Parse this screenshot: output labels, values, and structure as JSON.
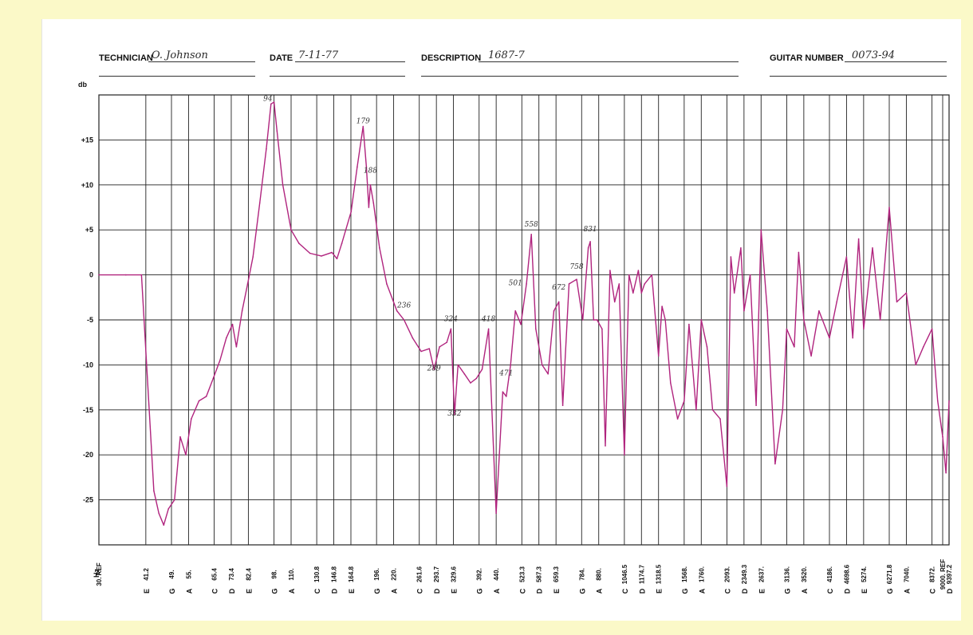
{
  "header": {
    "technician_label": "TECHNICIAN",
    "technician_value": "O. Johnson",
    "date_label": "DATE",
    "date_value": "7-11-77",
    "description_label": "DESCRIPTION",
    "description_value": "1687-7",
    "guitar_number_label": "GUITAR NUMBER",
    "guitar_number_value": "0073-94"
  },
  "chart_data": {
    "type": "line",
    "ylabel": "db",
    "xlabel": "Hz",
    "ylim": [
      -30,
      20
    ],
    "y_ticks": [
      "+15",
      "+10",
      "+5",
      "0",
      "-5",
      "-10",
      "-15",
      "-20",
      "-25"
    ],
    "y_tick_values": [
      15,
      10,
      5,
      0,
      -5,
      -10,
      -15,
      -20,
      -25
    ],
    "grid": true,
    "x_labels": [
      {
        "freq": "30. REF",
        "note": ""
      },
      {
        "freq": "41.2",
        "note": "E"
      },
      {
        "freq": "49.",
        "note": "G"
      },
      {
        "freq": "55.",
        "note": "A"
      },
      {
        "freq": "65.4",
        "note": "C"
      },
      {
        "freq": "73.4",
        "note": "D"
      },
      {
        "freq": "82.4",
        "note": "E"
      },
      {
        "freq": "98.",
        "note": "G"
      },
      {
        "freq": "110.",
        "note": "A"
      },
      {
        "freq": "130.8",
        "note": "C"
      },
      {
        "freq": "146.8",
        "note": "D"
      },
      {
        "freq": "164.8",
        "note": "E"
      },
      {
        "freq": "196.",
        "note": "G"
      },
      {
        "freq": "220.",
        "note": "A"
      },
      {
        "freq": "261.6",
        "note": "C"
      },
      {
        "freq": "293.7",
        "note": "D"
      },
      {
        "freq": "329.6",
        "note": "E"
      },
      {
        "freq": "392.",
        "note": "G"
      },
      {
        "freq": "440.",
        "note": "A"
      },
      {
        "freq": "523.3",
        "note": "C"
      },
      {
        "freq": "587.3",
        "note": "D"
      },
      {
        "freq": "659.3",
        "note": "E"
      },
      {
        "freq": "784.",
        "note": "G"
      },
      {
        "freq": "880.",
        "note": "A"
      },
      {
        "freq": "1046.5",
        "note": "C"
      },
      {
        "freq": "1174.7",
        "note": "D"
      },
      {
        "freq": "1318.5",
        "note": "E"
      },
      {
        "freq": "1568.",
        "note": "G"
      },
      {
        "freq": "1760.",
        "note": "A"
      },
      {
        "freq": "2093.",
        "note": "C"
      },
      {
        "freq": "2349.3",
        "note": "D"
      },
      {
        "freq": "2637.",
        "note": "E"
      },
      {
        "freq": "3136.",
        "note": "G"
      },
      {
        "freq": "3520.",
        "note": "A"
      },
      {
        "freq": "4186.",
        "note": "C"
      },
      {
        "freq": "4698.6",
        "note": "D"
      },
      {
        "freq": "5274.",
        "note": "E"
      },
      {
        "freq": "6271.8",
        "note": "G"
      },
      {
        "freq": "7040.",
        "note": "A"
      },
      {
        "freq": "8372.",
        "note": "C"
      },
      {
        "freq": "9000. REF",
        "note": ""
      },
      {
        "freq": "9397.2",
        "note": "D"
      }
    ],
    "series": [
      {
        "color": "#b0247e",
        "points": [
          [
            30,
            0
          ],
          [
            36,
            0
          ],
          [
            40,
            0
          ],
          [
            43.5,
            -24
          ],
          [
            45,
            -26.5
          ],
          [
            46.5,
            -27.8
          ],
          [
            48,
            -26
          ],
          [
            50,
            -25
          ],
          [
            52,
            -18
          ],
          [
            54,
            -20
          ],
          [
            56,
            -16
          ],
          [
            59,
            -14
          ],
          [
            62,
            -13.5
          ],
          [
            65,
            -11.5
          ],
          [
            68,
            -9.5
          ],
          [
            71,
            -7
          ],
          [
            74,
            -5.5
          ],
          [
            76,
            -8
          ],
          [
            79,
            -4
          ],
          [
            82,
            -1
          ],
          [
            85,
            2
          ],
          [
            89,
            8
          ],
          [
            93,
            14
          ],
          [
            96,
            19
          ],
          [
            98,
            19.2
          ],
          [
            100,
            16
          ],
          [
            104,
            10
          ],
          [
            110,
            5
          ],
          [
            116,
            3.5
          ],
          [
            125,
            2.4
          ],
          [
            135,
            2.1
          ],
          [
            145,
            2.5
          ],
          [
            150,
            1.8
          ],
          [
            155,
            3.5
          ],
          [
            165,
            7
          ],
          [
            172,
            12
          ],
          [
            179,
            16.5
          ],
          [
            183,
            12
          ],
          [
            186,
            7.5
          ],
          [
            188,
            10
          ],
          [
            192,
            8
          ],
          [
            200,
            3
          ],
          [
            210,
            -1
          ],
          [
            225,
            -4
          ],
          [
            236,
            -5
          ],
          [
            250,
            -7
          ],
          [
            265,
            -8.5
          ],
          [
            280,
            -8.2
          ],
          [
            289,
            -10.5
          ],
          [
            300,
            -8
          ],
          [
            315,
            -7.5
          ],
          [
            324,
            -6
          ],
          [
            332,
            -15.5
          ],
          [
            340,
            -10
          ],
          [
            355,
            -11
          ],
          [
            370,
            -12
          ],
          [
            385,
            -11.5
          ],
          [
            400,
            -10.5
          ],
          [
            418,
            -6
          ],
          [
            440,
            -26.5
          ],
          [
            460,
            -13
          ],
          [
            471,
            -13.5
          ],
          [
            485,
            -10
          ],
          [
            501,
            -4
          ],
          [
            520,
            -5.5
          ],
          [
            540,
            -1
          ],
          [
            558,
            4.5
          ],
          [
            575,
            -6
          ],
          [
            600,
            -10
          ],
          [
            625,
            -11
          ],
          [
            650,
            -4
          ],
          [
            672,
            -3
          ],
          [
            690,
            -14.5
          ],
          [
            720,
            -1
          ],
          [
            758,
            -0.5
          ],
          [
            790,
            -5
          ],
          [
            820,
            3
          ],
          [
            831,
            3.7
          ],
          [
            850,
            -5
          ],
          [
            870,
            -5
          ],
          [
            900,
            -6
          ],
          [
            920,
            -19
          ],
          [
            950,
            0.5
          ],
          [
            980,
            -3
          ],
          [
            1010,
            -1
          ],
          [
            1046.5,
            -20
          ],
          [
            1080,
            0
          ],
          [
            1110,
            -2
          ],
          [
            1150,
            0.5
          ],
          [
            1174.7,
            -2
          ],
          [
            1200,
            -1
          ],
          [
            1260,
            0
          ],
          [
            1318.5,
            -9
          ],
          [
            1350,
            -3.5
          ],
          [
            1380,
            -5
          ],
          [
            1430,
            -12
          ],
          [
            1500,
            -16
          ],
          [
            1568,
            -14
          ],
          [
            1620,
            -5.5
          ],
          [
            1700,
            -15
          ],
          [
            1760,
            -5
          ],
          [
            1830,
            -8
          ],
          [
            1900,
            -15
          ],
          [
            2000,
            -16
          ],
          [
            2093,
            -23.5
          ],
          [
            2150,
            2
          ],
          [
            2200,
            -2
          ],
          [
            2300,
            3
          ],
          [
            2349.3,
            -4
          ],
          [
            2450,
            0
          ],
          [
            2550,
            -14.5
          ],
          [
            2637,
            5
          ],
          [
            2750,
            -4
          ],
          [
            2900,
            -21
          ],
          [
            3050,
            -15
          ],
          [
            3136,
            -6
          ],
          [
            3300,
            -8
          ],
          [
            3400,
            2.5
          ],
          [
            3520,
            -5
          ],
          [
            3700,
            -9
          ],
          [
            3900,
            -4
          ],
          [
            4186,
            -7
          ],
          [
            4400,
            -3
          ],
          [
            4698.6,
            2
          ],
          [
            4900,
            -7
          ],
          [
            5100,
            4
          ],
          [
            5274,
            -6
          ],
          [
            5600,
            3
          ],
          [
            5900,
            -5
          ],
          [
            6271.8,
            7.5
          ],
          [
            6600,
            -3
          ],
          [
            7040,
            -2
          ],
          [
            7500,
            -10
          ],
          [
            7900,
            -8
          ],
          [
            8372,
            -6
          ],
          [
            8700,
            -14
          ],
          [
            9000,
            -18
          ],
          [
            9200,
            -22
          ],
          [
            9397.2,
            -14
          ]
        ]
      }
    ],
    "annotations": [
      {
        "text": "94",
        "x": 94,
        "y": 19
      },
      {
        "text": "179",
        "x": 179,
        "y": 16.5
      },
      {
        "text": "188",
        "x": 188,
        "y": 11
      },
      {
        "text": "236",
        "x": 236,
        "y": -4
      },
      {
        "text": "289",
        "x": 289,
        "y": -11
      },
      {
        "text": "324",
        "x": 324,
        "y": -5.5
      },
      {
        "text": "332",
        "x": 332,
        "y": -16
      },
      {
        "text": "418",
        "x": 418,
        "y": -5.5
      },
      {
        "text": "471",
        "x": 471,
        "y": -11.5
      },
      {
        "text": "501",
        "x": 501,
        "y": -1.5
      },
      {
        "text": "558",
        "x": 558,
        "y": 5
      },
      {
        "text": "672",
        "x": 672,
        "y": -2
      },
      {
        "text": "758",
        "x": 758,
        "y": 0.3
      },
      {
        "text": "831",
        "x": 831,
        "y": 4.5
      }
    ]
  }
}
